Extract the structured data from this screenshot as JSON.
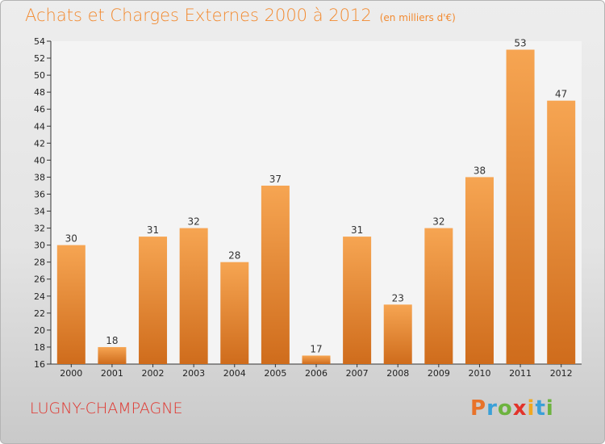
{
  "title": "Achats et Charges Externes 2000 à 2012",
  "unit_note": "(en milliers d'€)",
  "commune": "LUGNY-CHAMPAGNE",
  "logo": {
    "letters": [
      "P",
      "r",
      "o",
      "x",
      "i",
      "t",
      "i"
    ],
    "colors": [
      "#e8732a",
      "#3aa0d8",
      "#6db33f",
      "#e2332a",
      "#f0a820",
      "#3aa0d8",
      "#6db33f"
    ]
  },
  "colors": {
    "bar_light": "#f6a552",
    "bar_dark": "#cf6c1c",
    "title": "#f28a30",
    "commune": "#e0332c"
  },
  "chart_data": {
    "type": "bar",
    "categories": [
      "2000",
      "2001",
      "2002",
      "2003",
      "2004",
      "2005",
      "2006",
      "2007",
      "2008",
      "2009",
      "2010",
      "2011",
      "2012"
    ],
    "values": [
      30,
      18,
      31,
      32,
      28,
      37,
      17,
      31,
      23,
      32,
      38,
      53,
      47
    ],
    "title": "Achats et Charges Externes 2000 à 2012",
    "xlabel": "",
    "ylabel": "",
    "ylim": [
      16,
      54
    ],
    "yticks": [
      16,
      18,
      20,
      22,
      24,
      26,
      28,
      30,
      32,
      34,
      36,
      38,
      40,
      42,
      44,
      46,
      48,
      50,
      52,
      54
    ],
    "grid": false,
    "data_labels": true
  }
}
